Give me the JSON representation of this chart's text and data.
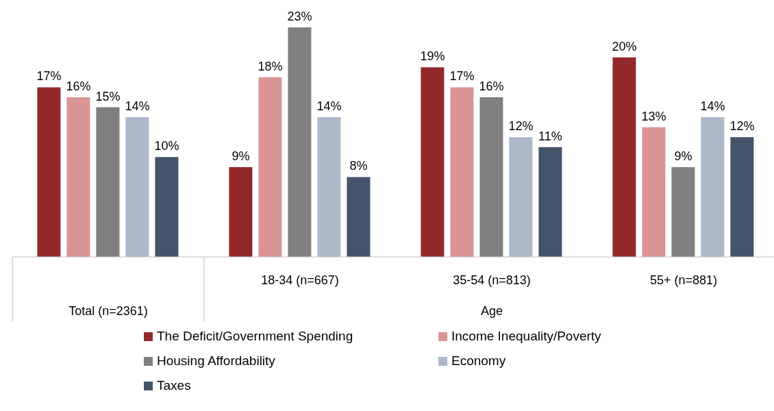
{
  "chart_data": {
    "type": "bar",
    "categories": [
      null,
      "18-34 (n=667)",
      "35-54 (n=813)",
      "55+ (n=881)"
    ],
    "series": [
      {
        "name": "The Deficit/Government Spending",
        "color": "#92282a",
        "values": [
          17,
          9,
          19,
          20
        ],
        "value_labels": [
          "17%",
          "9%",
          "19%",
          "20%"
        ]
      },
      {
        "name": "Income Inequality/Poverty",
        "color": "#d99594",
        "values": [
          16,
          18,
          17,
          13
        ],
        "value_labels": [
          "16%",
          "18%",
          "17%",
          "13%"
        ]
      },
      {
        "name": "Housing Affordability",
        "color": "#808080",
        "values": [
          15,
          23,
          16,
          9
        ],
        "value_labels": [
          "15%",
          "23%",
          "16%",
          "9%"
        ]
      },
      {
        "name": "Economy",
        "color": "#adb9ca",
        "values": [
          14,
          14,
          12,
          14
        ],
        "value_labels": [
          "14%",
          "14%",
          "12%",
          "14%"
        ]
      },
      {
        "name": "Taxes",
        "color": "#44546a",
        "values": [
          10,
          8,
          11,
          12
        ],
        "value_labels": [
          "10%",
          "8%",
          "11%",
          "12%"
        ]
      }
    ],
    "annotations": [
      "Total (n=2361)",
      "Age"
    ],
    "legend": "bottom",
    "grid": false
  }
}
